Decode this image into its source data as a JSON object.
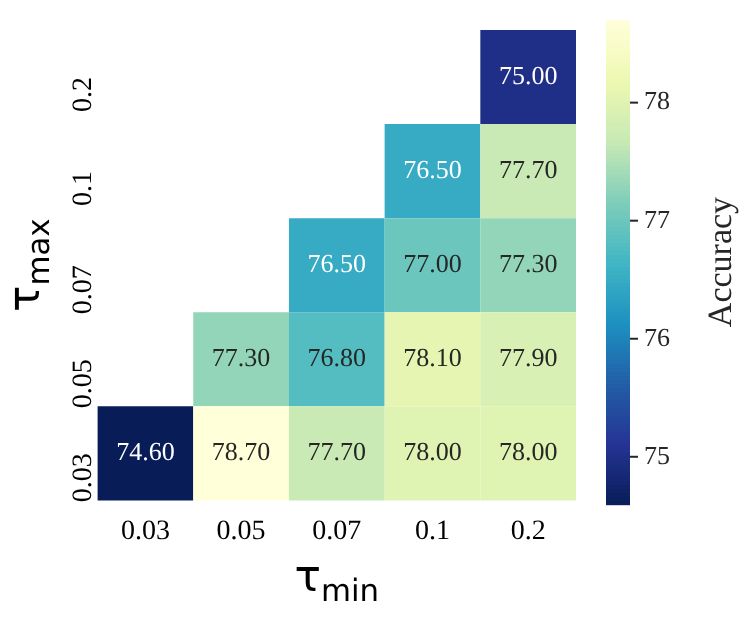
{
  "chart_data": {
    "type": "heatmap",
    "xlabel": "τ$_{min}$",
    "ylabel": "τ$_{max}$",
    "clabel": "Accuracy",
    "categories": [
      "0.03",
      "0.05",
      "0.07",
      "0.1",
      "0.2"
    ],
    "y_categories": [
      "0.2",
      "0.1",
      "0.07",
      "0.05",
      "0.03"
    ],
    "cells": [
      [
        null,
        null,
        null,
        null,
        75.0
      ],
      [
        null,
        null,
        null,
        76.5,
        77.7
      ],
      [
        null,
        null,
        76.5,
        77.0,
        77.3
      ],
      [
        null,
        77.3,
        76.8,
        78.1,
        77.9
      ],
      [
        74.6,
        78.7,
        77.7,
        78.0,
        78.0
      ]
    ],
    "cell_labels": [
      [
        null,
        null,
        null,
        null,
        "75.00"
      ],
      [
        null,
        null,
        null,
        "76.50",
        "77.70"
      ],
      [
        null,
        null,
        "76.50",
        "77.00",
        "77.30"
      ],
      [
        null,
        "77.30",
        "76.80",
        "78.10",
        "77.90"
      ],
      [
        "74.60",
        "78.70",
        "77.70",
        "78.00",
        "78.00"
      ]
    ],
    "clim": [
      74.6,
      78.7
    ],
    "cticks": [
      75,
      76,
      77,
      78
    ]
  }
}
